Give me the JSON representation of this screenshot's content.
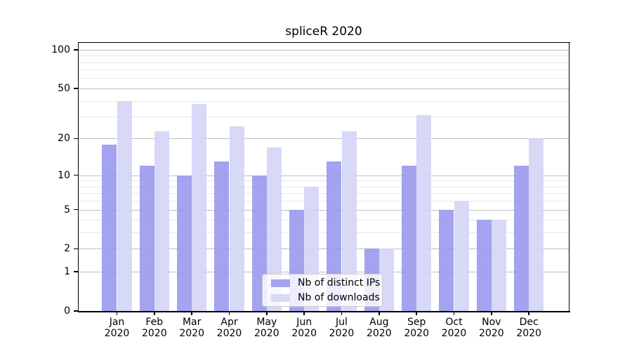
{
  "chart_data": {
    "type": "bar",
    "title": "spliceR 2020",
    "categories": [
      "Jan 2020",
      "Feb 2020",
      "Mar 2020",
      "Apr 2020",
      "May 2020",
      "Jun 2020",
      "Jul 2020",
      "Aug 2020",
      "Sep 2020",
      "Oct 2020",
      "Nov 2020",
      "Dec 2020"
    ],
    "series": [
      {
        "name": "Nb of distinct IPs",
        "color": "#9999ee",
        "values": [
          18,
          12,
          10,
          13,
          10,
          5,
          13,
          2,
          12,
          5,
          4,
          12
        ]
      },
      {
        "name": "Nb of downloads",
        "color": "#d4d4f6",
        "values": [
          40,
          23,
          38,
          25,
          17,
          8,
          23,
          2,
          31,
          6,
          4,
          20
        ]
      }
    ],
    "xlabel": "",
    "ylabel": "",
    "yscale": "log1p",
    "ylim": [
      0,
      113
    ],
    "yticks": [
      0,
      1,
      2,
      5,
      10,
      20,
      50,
      100
    ],
    "minor_yticks": [
      3,
      4,
      6,
      7,
      8,
      9,
      30,
      40,
      60,
      70,
      80,
      90
    ],
    "grid": true,
    "legend_position": "lower center",
    "colors": {
      "spine": "#000000",
      "grid_major": "#bfbfbf",
      "grid_minor": "#e8e8e8",
      "background": "#ffffff",
      "text": "#000000"
    }
  }
}
